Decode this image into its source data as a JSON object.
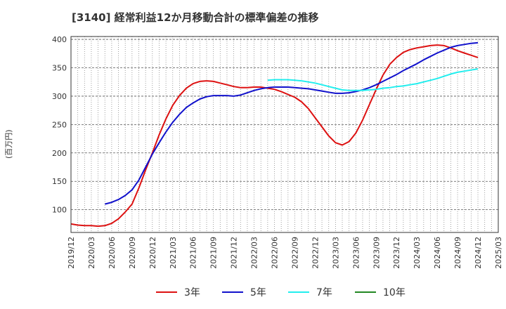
{
  "title": "[3140]  経常利益12か月移動合計の標準偏差の推移",
  "y_unit_label": "(百万円)",
  "chart_data": {
    "type": "line",
    "title": "[3140]  経常利益12か月移動合計の標準偏差の推移",
    "ylabel": "(百万円)",
    "xlabel": "",
    "ylim": [
      60,
      405
    ],
    "yticks": [
      100,
      150,
      200,
      250,
      300,
      350,
      400
    ],
    "xticks": [
      "2019/12",
      "2020/03",
      "2020/06",
      "2020/09",
      "2020/12",
      "2021/03",
      "2021/06",
      "2021/09",
      "2021/12",
      "2022/03",
      "2022/06",
      "2022/09",
      "2022/12",
      "2023/03",
      "2023/06",
      "2023/09",
      "2023/12",
      "2024/03",
      "2024/06",
      "2024/09",
      "2024/12",
      "2025/03"
    ],
    "grid": true,
    "legend_position": "bottom",
    "series": [
      {
        "name": "3年",
        "color": "#dd1111",
        "x": [
          "2019/12",
          "2020/01",
          "2020/02",
          "2020/03",
          "2020/04",
          "2020/05",
          "2020/06",
          "2020/07",
          "2020/08",
          "2020/09",
          "2020/10",
          "2020/11",
          "2020/12",
          "2021/01",
          "2021/02",
          "2021/03",
          "2021/04",
          "2021/05",
          "2021/06",
          "2021/07",
          "2021/08",
          "2021/09",
          "2021/10",
          "2021/11",
          "2021/12",
          "2022/01",
          "2022/02",
          "2022/03",
          "2022/04",
          "2022/05",
          "2022/06",
          "2022/07",
          "2022/08",
          "2022/09",
          "2022/10",
          "2022/11",
          "2022/12",
          "2023/01",
          "2023/02",
          "2023/03",
          "2023/04",
          "2023/05",
          "2023/06",
          "2023/07",
          "2023/08",
          "2023/09",
          "2023/10",
          "2023/11",
          "2023/12",
          "2024/01",
          "2024/02",
          "2024/03",
          "2024/04",
          "2024/05",
          "2024/06",
          "2024/07",
          "2024/08",
          "2024/09",
          "2024/10",
          "2024/11",
          "2024/12"
        ],
        "values": [
          75,
          73,
          72,
          72,
          71,
          72,
          76,
          84,
          96,
          110,
          138,
          170,
          200,
          232,
          260,
          284,
          301,
          314,
          322,
          326,
          327,
          326,
          323,
          320,
          317,
          315,
          315,
          316,
          316,
          314,
          312,
          308,
          303,
          298,
          290,
          278,
          262,
          246,
          230,
          218,
          214,
          220,
          235,
          258,
          285,
          312,
          337,
          356,
          368,
          377,
          382,
          385,
          387,
          389,
          390,
          389,
          385,
          380,
          376,
          372,
          368
        ],
        "max_value": 390,
        "min_value": 71,
        "latest_value": 368
      },
      {
        "name": "5年",
        "color": "#1111cc",
        "x": [
          "2020/05",
          "2020/06",
          "2020/07",
          "2020/08",
          "2020/09",
          "2020/10",
          "2020/11",
          "2020/12",
          "2021/01",
          "2021/02",
          "2021/03",
          "2021/04",
          "2021/05",
          "2021/06",
          "2021/07",
          "2021/08",
          "2021/09",
          "2021/10",
          "2021/11",
          "2021/12",
          "2022/01",
          "2022/02",
          "2022/03",
          "2022/04",
          "2022/05",
          "2022/06",
          "2022/07",
          "2022/08",
          "2022/09",
          "2022/10",
          "2022/11",
          "2022/12",
          "2023/01",
          "2023/02",
          "2023/03",
          "2023/04",
          "2023/05",
          "2023/06",
          "2023/07",
          "2023/08",
          "2023/09",
          "2023/10",
          "2023/11",
          "2023/12",
          "2024/01",
          "2024/02",
          "2024/03",
          "2024/04",
          "2024/05",
          "2024/06",
          "2024/07",
          "2024/08",
          "2024/09",
          "2024/10",
          "2024/11",
          "2024/12"
        ],
        "values": [
          110,
          113,
          118,
          125,
          135,
          152,
          175,
          198,
          218,
          237,
          254,
          268,
          280,
          288,
          295,
          299,
          301,
          301,
          301,
          300,
          302,
          306,
          310,
          313,
          315,
          316,
          316,
          316,
          315,
          314,
          313,
          311,
          309,
          307,
          305,
          305,
          306,
          308,
          311,
          315,
          320,
          326,
          332,
          338,
          345,
          351,
          357,
          364,
          370,
          376,
          381,
          386,
          389,
          391,
          393,
          394
        ],
        "max_value": 394,
        "min_value": 110,
        "latest_value": 394
      },
      {
        "name": "7年",
        "color": "#22eeee",
        "x": [
          "2022/05",
          "2022/06",
          "2022/07",
          "2022/08",
          "2022/09",
          "2022/10",
          "2022/11",
          "2022/12",
          "2023/01",
          "2023/02",
          "2023/03",
          "2023/04",
          "2023/05",
          "2023/06",
          "2023/07",
          "2023/08",
          "2023/09",
          "2023/10",
          "2023/11",
          "2023/12",
          "2024/01",
          "2024/02",
          "2024/03",
          "2024/04",
          "2024/05",
          "2024/06",
          "2024/07",
          "2024/08",
          "2024/09",
          "2024/10",
          "2024/11",
          "2024/12"
        ],
        "values": [
          328,
          329,
          329,
          329,
          328,
          327,
          325,
          323,
          320,
          317,
          314,
          311,
          310,
          310,
          310,
          311,
          312,
          314,
          315,
          317,
          318,
          320,
          322,
          325,
          328,
          331,
          335,
          339,
          342,
          344,
          346,
          348
        ],
        "max_value": 348,
        "min_value": 310,
        "latest_value": 348
      },
      {
        "name": "10年",
        "color": "#228822",
        "x": [],
        "values": []
      }
    ]
  }
}
